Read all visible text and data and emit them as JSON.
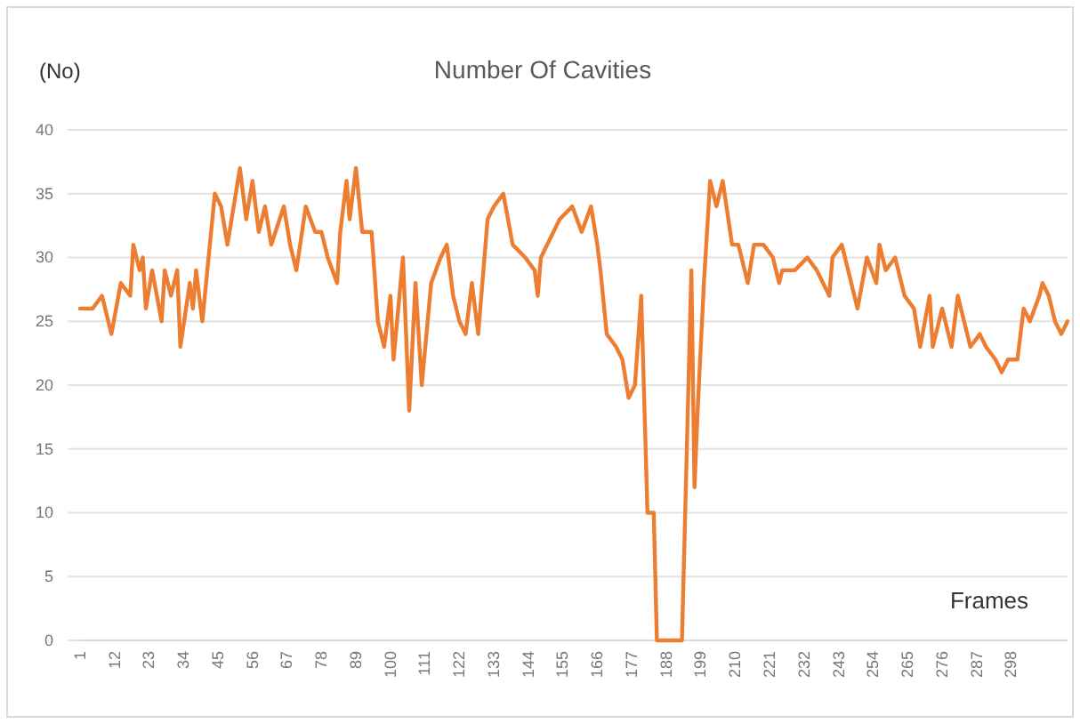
{
  "chart_data": {
    "type": "line",
    "title": "Number Of Cavities",
    "ylabel": "(No)",
    "xlabel": "Frames",
    "x": [
      1,
      5,
      8,
      11,
      14,
      17,
      18,
      20,
      21,
      22,
      24,
      27,
      28,
      30,
      32,
      33,
      36,
      37,
      38,
      40,
      42,
      44,
      46,
      48,
      52,
      54,
      56,
      58,
      60,
      62,
      66,
      68,
      70,
      73,
      76,
      78,
      80,
      83,
      84,
      86,
      87,
      89,
      91,
      94,
      96,
      98,
      100,
      101,
      104,
      106,
      108,
      110,
      113,
      116,
      118,
      120,
      122,
      124,
      126,
      128,
      131,
      133,
      136,
      139,
      143,
      146,
      147,
      148,
      154,
      158,
      161,
      164,
      166,
      167,
      169,
      172,
      174,
      176,
      178,
      180,
      182,
      184,
      185,
      193,
      196,
      197,
      198,
      200,
      202,
      204,
      206,
      209,
      211,
      214,
      216,
      219,
      222,
      224,
      225,
      229,
      233,
      236,
      240,
      241,
      244,
      246,
      249,
      252,
      255,
      256,
      258,
      261,
      264,
      267,
      269,
      272,
      273,
      276,
      279,
      281,
      283,
      285,
      288,
      290,
      293,
      295,
      297,
      300,
      302,
      304,
      307,
      308,
      310,
      312,
      314,
      316
    ],
    "series": [
      {
        "color": "#ed7d31",
        "values": [
          26,
          26,
          27,
          24,
          28,
          27,
          31,
          29,
          30,
          26,
          29,
          25,
          29,
          27,
          29,
          23,
          28,
          26,
          29,
          25,
          30,
          35,
          34,
          31,
          37,
          33,
          36,
          32,
          34,
          31,
          34,
          31,
          29,
          34,
          32,
          32,
          30,
          28,
          32,
          36,
          33,
          37,
          32,
          32,
          25,
          23,
          27,
          22,
          30,
          18,
          28,
          20,
          28,
          30,
          31,
          27,
          25,
          24,
          28,
          24,
          33,
          34,
          35,
          31,
          30,
          29,
          27,
          30,
          33,
          34,
          32,
          34,
          31,
          29,
          24,
          23,
          22,
          19,
          20,
          27,
          10,
          10,
          0,
          0,
          29,
          12,
          18,
          28,
          36,
          34,
          36,
          31,
          31,
          28,
          31,
          31,
          30,
          28,
          29,
          29,
          30,
          29,
          27,
          30,
          31,
          29,
          26,
          30,
          28,
          31,
          29,
          30,
          27,
          26,
          23,
          27,
          23,
          26,
          23,
          27,
          25,
          23,
          24,
          23,
          22,
          21,
          22,
          22,
          26,
          25,
          27,
          28,
          27,
          25,
          24,
          25
        ]
      }
    ],
    "xlim": [
      1,
      316
    ],
    "xticks": [
      1,
      12,
      23,
      34,
      45,
      56,
      67,
      78,
      89,
      100,
      111,
      122,
      133,
      144,
      155,
      166,
      177,
      188,
      199,
      210,
      221,
      232,
      243,
      254,
      265,
      276,
      287,
      298
    ],
    "ylim": [
      0,
      40
    ],
    "yticks": [
      0,
      5,
      10,
      15,
      20,
      25,
      30,
      35,
      40
    ],
    "grid": "y"
  }
}
